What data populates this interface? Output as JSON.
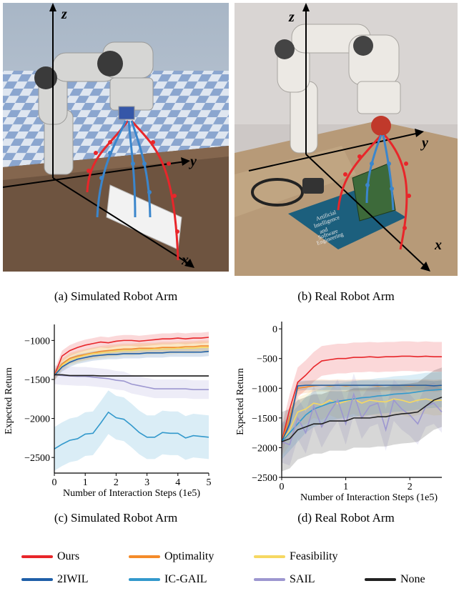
{
  "captions": {
    "a": "(a) Simulated Robot Arm",
    "b": "(b) Real Robot Arm",
    "c": "(c) Simulated Robot Arm",
    "d": "(d) Real Robot Arm"
  },
  "photo_axes": {
    "x": "x",
    "y": "y",
    "z": "z"
  },
  "photo_b_book": {
    "title_lines": [
      "Artificial",
      "Intelligence",
      "and",
      "Software",
      "Engineering"
    ]
  },
  "colors": {
    "Ours": "#e8262a",
    "Optimality": "#f48b2a",
    "Feasibility": "#f6d862",
    "2IWIL": "#1f5fa8",
    "IC-GAIL": "#3399cc",
    "SAIL": "#9d97d0",
    "None": "#222222"
  },
  "legend": [
    {
      "name": "Ours",
      "color": "#e8262a"
    },
    {
      "name": "Optimality",
      "color": "#f48b2a"
    },
    {
      "name": "Feasibility",
      "color": "#f6d862"
    },
    {
      "name": "2IWIL",
      "color": "#1f5fa8"
    },
    {
      "name": "IC-GAIL",
      "color": "#3399cc"
    },
    {
      "name": "SAIL",
      "color": "#9d97d0"
    },
    {
      "name": "None",
      "color": "#222222"
    }
  ],
  "chart_data": [
    {
      "type": "line",
      "title": "",
      "xlabel": "Number of Interaction Steps (1e5)",
      "ylabel": "Expected Return",
      "xlim": [
        0,
        5
      ],
      "ylim": [
        -2700,
        -850
      ],
      "xticks": [
        0,
        1,
        2,
        3,
        4,
        5
      ],
      "yticks": [
        -1000,
        -1500,
        -2000,
        -2500
      ],
      "x": [
        0,
        0.25,
        0.5,
        0.75,
        1,
        1.25,
        1.5,
        1.75,
        2,
        2.25,
        2.5,
        2.75,
        3,
        3.25,
        3.5,
        3.75,
        4,
        4.25,
        4.5,
        4.75,
        5
      ],
      "series": [
        {
          "name": "Ours",
          "values": [
            -1450,
            -1200,
            -1130,
            -1090,
            -1060,
            -1040,
            -1020,
            -1030,
            -1010,
            -1000,
            -1000,
            -1010,
            -1000,
            -990,
            -980,
            -980,
            -970,
            -980,
            -970,
            -970,
            -960
          ],
          "band": 70
        },
        {
          "name": "Optimality",
          "values": [
            -1450,
            -1300,
            -1230,
            -1200,
            -1180,
            -1160,
            -1140,
            -1130,
            -1120,
            -1110,
            -1110,
            -1100,
            -1100,
            -1100,
            -1090,
            -1090,
            -1090,
            -1080,
            -1080,
            -1070,
            -1070
          ],
          "band": 70
        },
        {
          "name": "Feasibility",
          "values": [
            -1450,
            -1320,
            -1250,
            -1220,
            -1190,
            -1170,
            -1160,
            -1150,
            -1140,
            -1130,
            -1130,
            -1120,
            -1120,
            -1110,
            -1110,
            -1110,
            -1100,
            -1100,
            -1100,
            -1090,
            -1090
          ],
          "band": 70
        },
        {
          "name": "2IWIL",
          "values": [
            -1450,
            -1340,
            -1280,
            -1240,
            -1220,
            -1200,
            -1190,
            -1180,
            -1180,
            -1170,
            -1170,
            -1170,
            -1160,
            -1160,
            -1160,
            -1150,
            -1150,
            -1150,
            -1150,
            -1150,
            -1140
          ],
          "band": 60
        },
        {
          "name": "IC-GAIL",
          "values": [
            -2390,
            -2330,
            -2280,
            -2260,
            -2200,
            -2190,
            -2060,
            -1920,
            -1990,
            -2010,
            -2090,
            -2180,
            -2240,
            -2240,
            -2180,
            -2190,
            -2190,
            -2250,
            -2220,
            -2230,
            -2240
          ],
          "band": 280
        },
        {
          "name": "SAIL",
          "values": [
            -1440,
            -1450,
            -1455,
            -1460,
            -1460,
            -1470,
            -1480,
            -1490,
            -1510,
            -1520,
            -1560,
            -1580,
            -1600,
            -1620,
            -1620,
            -1620,
            -1620,
            -1620,
            -1630,
            -1630,
            -1630
          ],
          "band": 120
        },
        {
          "name": "None",
          "values": [
            -1440,
            -1440,
            -1450,
            -1450,
            -1450,
            -1450,
            -1455,
            -1455,
            -1455,
            -1455,
            -1455,
            -1455,
            -1455,
            -1455,
            -1455,
            -1455,
            -1455,
            -1455,
            -1455,
            -1455,
            -1455
          ],
          "band": 10
        }
      ]
    },
    {
      "type": "line",
      "title": "",
      "xlabel": "Number of Interaction Steps (1e5)",
      "ylabel": "Expected Return",
      "xlim": [
        0,
        2.5
      ],
      "ylim": [
        -2500,
        50
      ],
      "xticks": [
        0,
        1,
        2
      ],
      "yticks": [
        0,
        -500,
        -1000,
        -1500,
        -2000,
        -2500
      ],
      "x": [
        0,
        0.125,
        0.25,
        0.375,
        0.5,
        0.625,
        0.75,
        0.875,
        1,
        1.125,
        1.25,
        1.375,
        1.5,
        1.625,
        1.75,
        1.875,
        2,
        2.125,
        2.25,
        2.375,
        2.5
      ],
      "series": [
        {
          "name": "Ours",
          "values": [
            -1900,
            -1350,
            -900,
            -780,
            -640,
            -540,
            -520,
            -500,
            -500,
            -480,
            -480,
            -470,
            -480,
            -470,
            -470,
            -460,
            -460,
            -470,
            -460,
            -470,
            -470
          ],
          "band": 250
        },
        {
          "name": "Optimality",
          "values": [
            -1900,
            -1500,
            -1000,
            -980,
            -960,
            -950,
            -960,
            -950,
            -960,
            -950,
            -950,
            -950,
            -960,
            -950,
            -950,
            -950,
            -960,
            -950,
            -950,
            -960,
            -950
          ],
          "band": 100
        },
        {
          "name": "Feasibility",
          "values": [
            -1900,
            -1700,
            -1400,
            -1350,
            -1250,
            -1280,
            -1200,
            -1260,
            -1220,
            -1180,
            -1250,
            -1200,
            -1220,
            -1230,
            -1180,
            -1200,
            -1240,
            -1200,
            -1180,
            -1210,
            -1200
          ],
          "band": 250
        },
        {
          "name": "2IWIL",
          "values": [
            -1900,
            -1600,
            -960,
            -950,
            -950,
            -950,
            -950,
            -950,
            -950,
            -950,
            -950,
            -950,
            -950,
            -950,
            -950,
            -950,
            -950,
            -950,
            -950,
            -960,
            -950
          ],
          "band": 80
        },
        {
          "name": "IC-GAIL",
          "values": [
            -1900,
            -1750,
            -1600,
            -1450,
            -1350,
            -1300,
            -1250,
            -1220,
            -1200,
            -1180,
            -1160,
            -1150,
            -1130,
            -1120,
            -1100,
            -1090,
            -1080,
            -1060,
            -1040,
            -1030,
            -1020
          ],
          "band": 300
        },
        {
          "name": "SAIL",
          "values": [
            -1900,
            -1950,
            -1500,
            -1750,
            -1300,
            -1650,
            -1400,
            -1200,
            -1600,
            -1100,
            -1500,
            -1300,
            -1250,
            -1700,
            -1200,
            -1350,
            -1450,
            -1600,
            -1300,
            -1250,
            -1400
          ],
          "band": 350
        },
        {
          "name": "None",
          "values": [
            -1900,
            -1850,
            -1700,
            -1650,
            -1600,
            -1600,
            -1550,
            -1550,
            -1550,
            -1500,
            -1500,
            -1500,
            -1480,
            -1480,
            -1450,
            -1430,
            -1420,
            -1400,
            -1300,
            -1200,
            -1150
          ],
          "band": 500
        }
      ]
    }
  ]
}
